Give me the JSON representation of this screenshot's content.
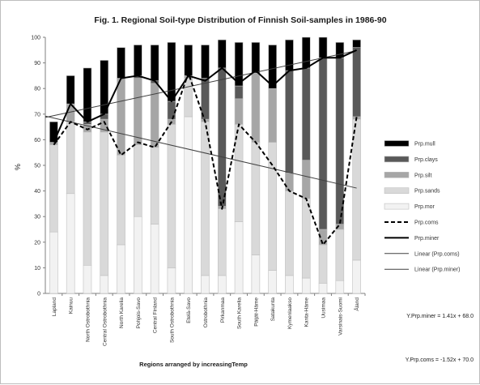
{
  "chart_data": {
    "type": "bar",
    "title": "Fig. 1. Regional Soil-type Distribution of Finnish Soil-samples in 1986-90",
    "xlabel": "Regions arranged by increasingTemp",
    "ylabel": "%",
    "ylim": [
      0,
      100
    ],
    "yticks": [
      0,
      10,
      20,
      30,
      40,
      50,
      60,
      70,
      80,
      90,
      100
    ],
    "grid": false,
    "legend_position": "right",
    "categories": [
      "Lapland",
      "Kainuu",
      "North Ostrobothnia",
      "Central Ostrobothnia",
      "North Karelia",
      "Pohjois-Savo",
      "Central Finland",
      "South Ostrobothnia",
      "Etelä-Savo",
      "Ostrobothnia",
      "Pirkanmaa",
      "South Karelia",
      "Päijät-Häme",
      "Satakunta",
      "Kymenlaakso",
      "Kanta-Häme",
      "Uusimaa",
      "Varsinais-Suomi",
      "Åland"
    ],
    "series": [
      {
        "name": "Prp.mor",
        "kind": "stacked-bar",
        "color": "#f2f2f2",
        "values": [
          24,
          39,
          11,
          7,
          19,
          30,
          27,
          10,
          69,
          7,
          7,
          28,
          15,
          9,
          7,
          6,
          4,
          5,
          13
        ]
      },
      {
        "name": "Prp.sands",
        "kind": "stacked-bar",
        "color": "#d9d9d9",
        "values": [
          34,
          28,
          52,
          56,
          35,
          28,
          30,
          56,
          15,
          60,
          26,
          38,
          44,
          50,
          33,
          31,
          15,
          20,
          55
        ]
      },
      {
        "name": "Prp.silt",
        "kind": "stacked-bar",
        "color": "#a6a6a6",
        "values": [
          1,
          7,
          3,
          5,
          30,
          26,
          25,
          2,
          1,
          1,
          1,
          10,
          27,
          21,
          7,
          15,
          6,
          2,
          1
        ]
      },
      {
        "name": "Prp.clays",
        "kind": "stacked-bar",
        "color": "#595959",
        "values": [
          0,
          0,
          1,
          2,
          0,
          1,
          1,
          7,
          0,
          16,
          54,
          5,
          0,
          0,
          40,
          36,
          67,
          65,
          27
        ]
      },
      {
        "name": "Prp.mull",
        "kind": "stacked-bar",
        "color": "#000000",
        "values": [
          8,
          11,
          21,
          21,
          12,
          12,
          14,
          23,
          12,
          13,
          11,
          17,
          12,
          17,
          12,
          12,
          8,
          6,
          3
        ]
      },
      {
        "name": "Prp.coms",
        "kind": "line-dashed",
        "color": "#000000",
        "values": [
          58,
          67,
          64,
          67,
          54,
          59,
          57,
          67,
          86,
          67,
          33,
          66,
          59,
          50,
          40,
          37,
          19,
          27,
          69
        ]
      },
      {
        "name": "Prp.miner",
        "kind": "line",
        "color": "#000000",
        "values": [
          59,
          74,
          67,
          70,
          84,
          85,
          83,
          75,
          85,
          83,
          88,
          82,
          87,
          81,
          87,
          88,
          92,
          92,
          95
        ]
      },
      {
        "name": "Linear (Prp.coms)",
        "kind": "trendline",
        "color": "#404040",
        "slope": -1.52,
        "intercept": 70.0
      },
      {
        "name": "Linear (Prp.miner)",
        "kind": "trendline",
        "color": "#404040",
        "slope": 1.41,
        "intercept": 68.0
      }
    ],
    "annotations": [
      "Y.Prp.miner = 1.41x + 68.0",
      "Y.Prp.coms = -1.52x + 70.0"
    ]
  }
}
